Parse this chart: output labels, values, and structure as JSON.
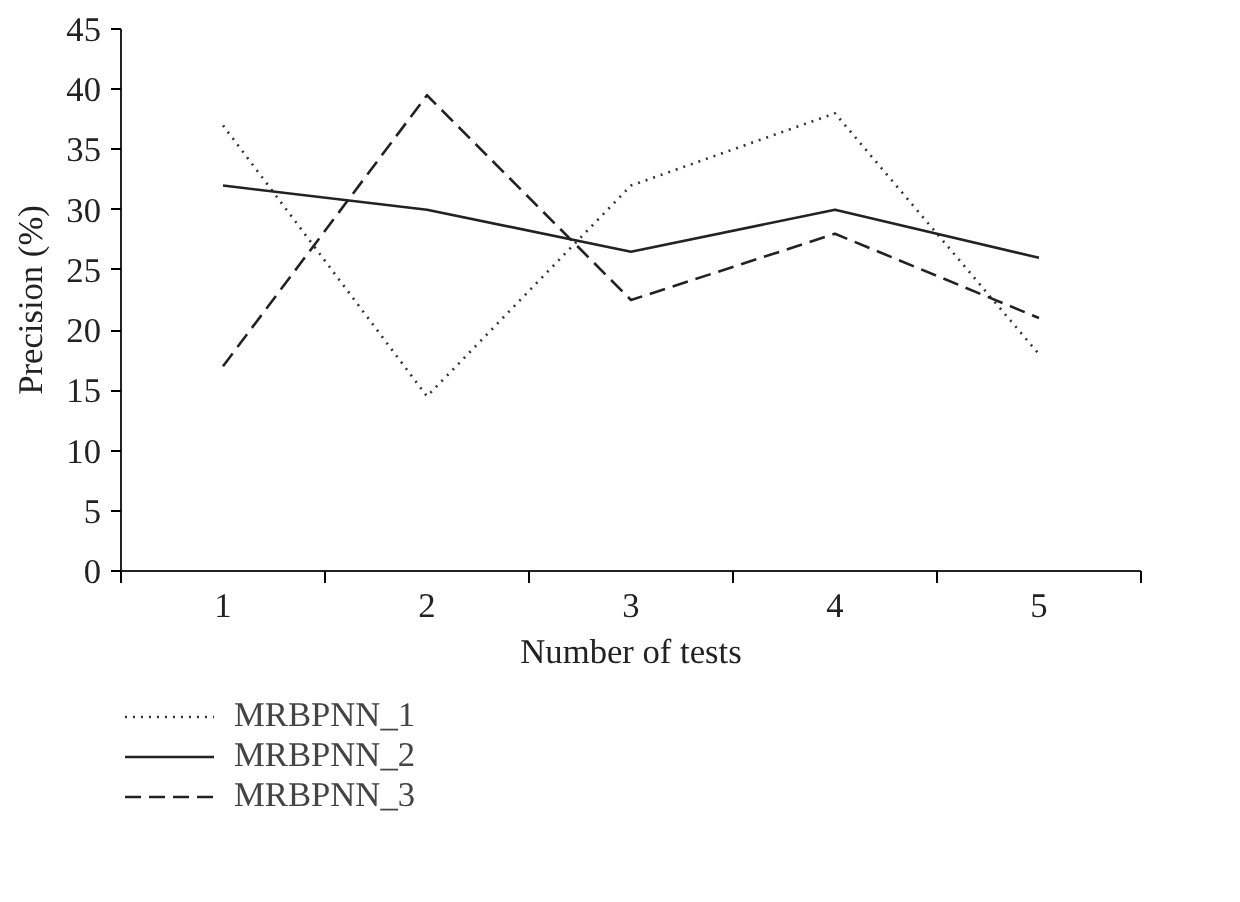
{
  "chart_data": {
    "type": "line",
    "xlabel": "Number of tests",
    "ylabel": "Precision (%)",
    "categories": [
      "1",
      "2",
      "3",
      "4",
      "5"
    ],
    "series": [
      {
        "name": "MRBPNN_1",
        "color": "#333333",
        "line_style": "dotted",
        "values": [
          37,
          14.5,
          32,
          38,
          18
        ]
      },
      {
        "name": "MRBPNN_2",
        "color": "#222222",
        "line_style": "solid",
        "values": [
          32,
          30,
          26.5,
          30,
          26
        ]
      },
      {
        "name": "MRBPNN_3",
        "color": "#222222",
        "line_style": "dashed",
        "values": [
          17,
          39.5,
          22.5,
          28,
          21
        ]
      }
    ],
    "ylim": [
      0,
      45
    ],
    "yticks": [
      0,
      5,
      10,
      15,
      20,
      25,
      30,
      35,
      40,
      45
    ],
    "grid": false,
    "legend": "bottom left",
    "marker": "none"
  }
}
